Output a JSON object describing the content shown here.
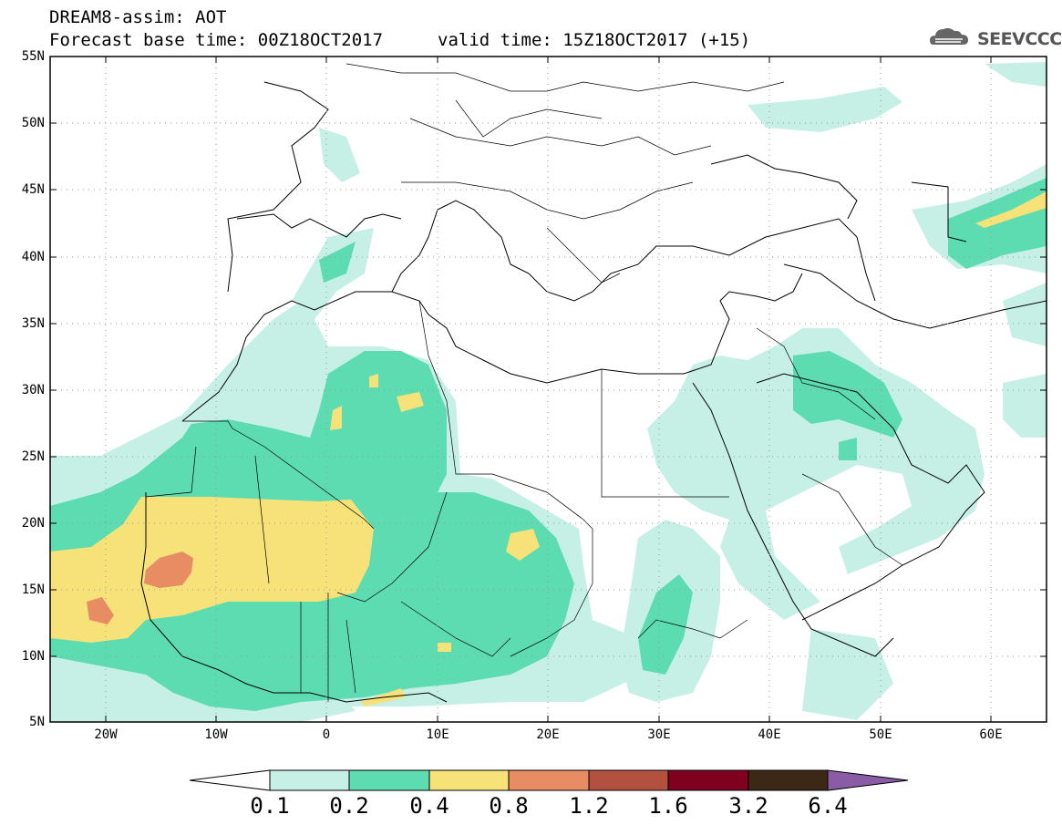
{
  "header": {
    "line1": "DREAM8-assim: AOT",
    "line2": "Forecast base time: 00Z18OCT2017",
    "valid": "valid time: 15Z18OCT2017 (+15)"
  },
  "logo": {
    "text": "SEEVCCC",
    "icon": "cloud-logo-icon"
  },
  "map": {
    "lat_labels": [
      "55N",
      "50N",
      "45N",
      "40N",
      "35N",
      "30N",
      "25N",
      "20N",
      "15N",
      "10N",
      "5N"
    ],
    "lon_labels": [
      "20W",
      "10W",
      "0",
      "10E",
      "20E",
      "30E",
      "40E",
      "50E",
      "60E"
    ],
    "extent": {
      "lon": [
        -25,
        65
      ],
      "lat": [
        5,
        55
      ]
    },
    "grid": "dotted"
  },
  "colorbar": {
    "tick_labels": [
      "0.1",
      "0.2",
      "0.4",
      "0.8",
      "1.2",
      "1.6",
      "3.2",
      "6.4"
    ],
    "colors": [
      "#ffffff",
      "#c6f0e6",
      "#5cdcb0",
      "#f7e27a",
      "#e88c64",
      "#b35040",
      "#800020",
      "#3c2817",
      "#8a5ca8"
    ]
  },
  "chart_data": {
    "type": "heatmap",
    "title": "DREAM8-assim: AOT",
    "subtitle": "Forecast base time: 00Z18OCT2017    valid time: 15Z18OCT2017 (+15)",
    "levels": [
      0.1,
      0.2,
      0.4,
      0.8,
      1.2,
      1.6,
      3.2,
      6.4
    ],
    "xlabel": "",
    "ylabel": "",
    "xlim": [
      -25,
      65
    ],
    "ylim": [
      5,
      55
    ]
  }
}
